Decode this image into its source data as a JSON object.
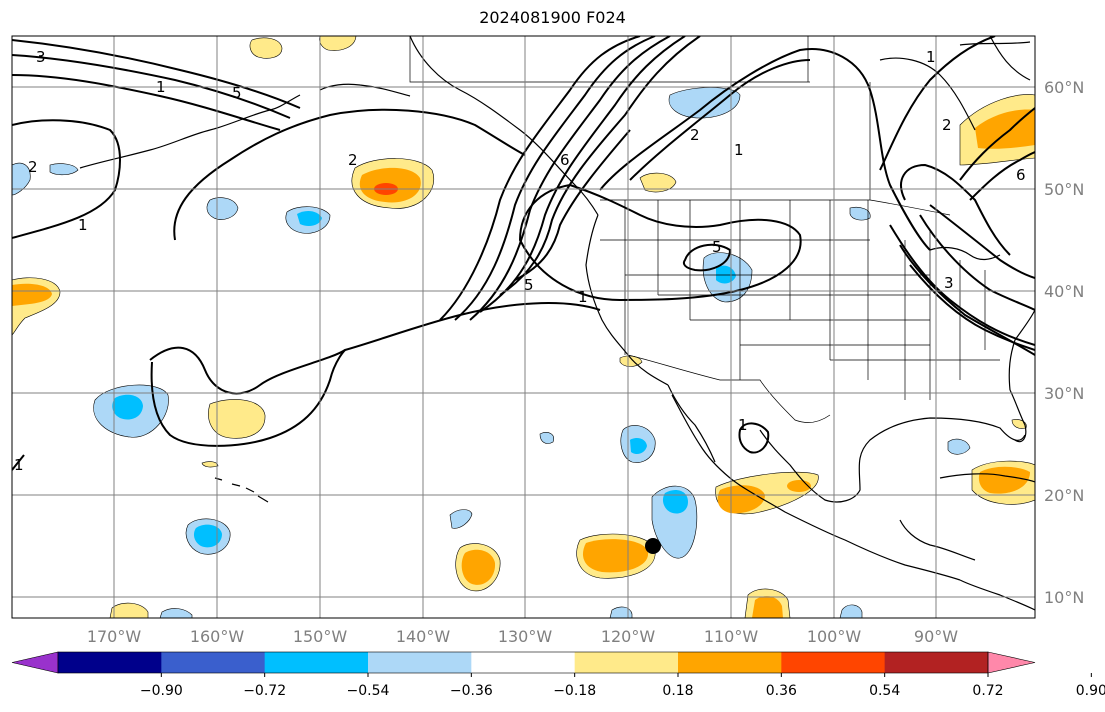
{
  "title": "2024081900 F024",
  "lat_labels": [
    "60°N",
    "50°N",
    "40°N",
    "30°N",
    "20°N",
    "10°N"
  ],
  "lon_labels": [
    "170°W",
    "160°W",
    "150°W",
    "140°W",
    "130°W",
    "120°W",
    "110°W",
    "100°W",
    "90°W"
  ],
  "colorbar": {
    "colors": [
      "#9932cc",
      "#00008b",
      "#3a5fcd",
      "#00bfff",
      "#add8f7",
      "#ffffff",
      "#ffea8a",
      "#ffa500",
      "#ff4500",
      "#b22222",
      "#ff88aa"
    ],
    "labels": [
      "−0.90",
      "−0.72",
      "−0.54",
      "−0.36",
      "−0.18",
      "0.18",
      "0.36",
      "0.54",
      "0.72",
      "0.90"
    ]
  },
  "contour_labels": [
    "3",
    "1",
    "5",
    "2",
    "1",
    "2",
    "5",
    "6",
    "1",
    "2",
    "1",
    "1",
    "5",
    "2",
    "3",
    "1",
    "6",
    "1"
  ],
  "marker": {
    "name": "storm position",
    "lat": 15,
    "lon": -116.5
  }
}
